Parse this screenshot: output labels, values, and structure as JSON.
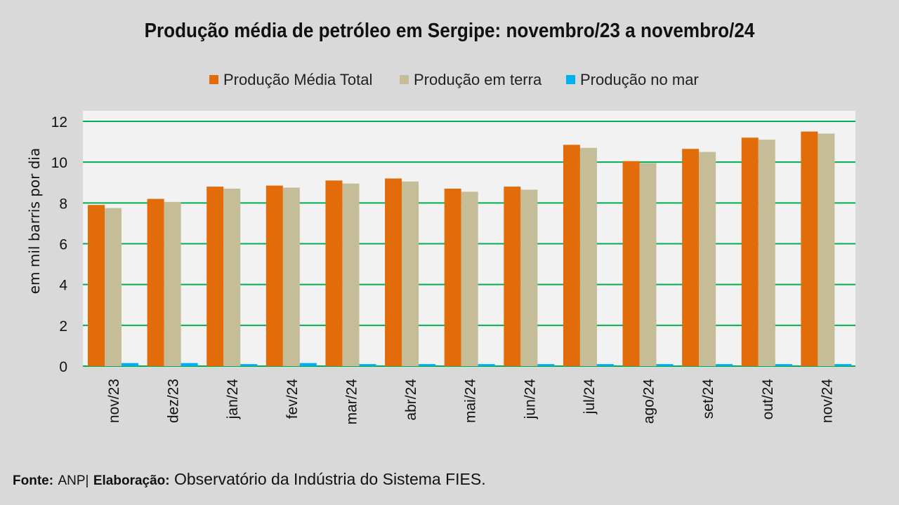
{
  "chart_data": {
    "type": "bar",
    "title": "Produção média de petróleo em Sergipe: novembro/23 a novembro/24",
    "ylabel": "em mil barris por dia",
    "xlabel": "",
    "ylim": [
      0,
      12
    ],
    "yticks": [
      0,
      2,
      4,
      6,
      8,
      10,
      12
    ],
    "grid": true,
    "legend_position": "top",
    "categories": [
      "nov/23",
      "dez/23",
      "jan/24",
      "fev/24",
      "mar/24",
      "abr/24",
      "mai/24",
      "jun/24",
      "jul/24",
      "ago/24",
      "set/24",
      "out/24",
      "nov/24"
    ],
    "series": [
      {
        "name": "Produção Média Total",
        "color": "#e36c0a",
        "values": [
          7.9,
          8.2,
          8.8,
          8.85,
          9.1,
          9.2,
          8.7,
          8.8,
          10.85,
          10.05,
          10.65,
          11.2,
          11.5
        ]
      },
      {
        "name": "Produção em terra",
        "color": "#c4bd97",
        "values": [
          7.75,
          8.05,
          8.7,
          8.75,
          8.95,
          9.05,
          8.55,
          8.65,
          10.7,
          9.95,
          10.5,
          11.1,
          11.4
        ]
      },
      {
        "name": "Produção no mar",
        "color": "#00b0f0",
        "values": [
          0.15,
          0.15,
          0.1,
          0.15,
          0.1,
          0.1,
          0.1,
          0.1,
          0.1,
          0.1,
          0.1,
          0.1,
          0.1
        ]
      }
    ]
  },
  "footer": {
    "fonte_label": "Fonte:",
    "fonte_value": "ANP|",
    "elaboracao_label": "Elaboração:",
    "elaboracao_value": "Observatório da Indústria do Sistema FIES."
  },
  "colors": {
    "page_background": "#d9d9d9",
    "plot_background": "#f2f2f2",
    "gridline": "#00b050"
  }
}
